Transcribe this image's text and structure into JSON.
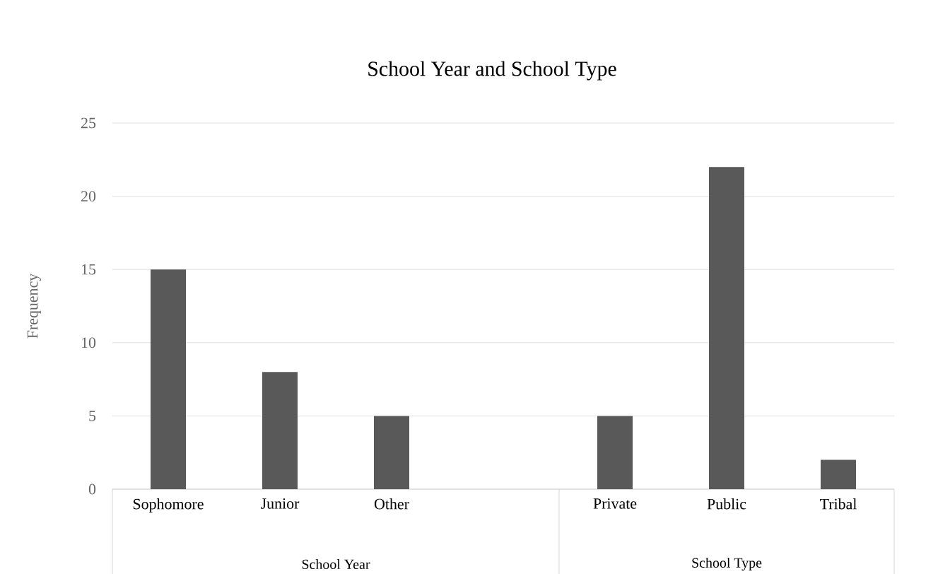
{
  "chart_data": {
    "type": "bar",
    "title": "School Year and School Type",
    "ylabel": "Frequency",
    "categories": [
      "Sophomore",
      "Junior",
      "Other",
      null,
      "Private",
      "Public",
      "Tribal"
    ],
    "values": [
      15,
      8,
      5,
      null,
      5,
      22,
      2
    ],
    "color": "#595959",
    "ylim": [
      0,
      25
    ],
    "yticks": [
      0,
      5,
      10,
      15,
      20,
      25
    ],
    "grid": "y",
    "annotations": [
      "School Year",
      "School Type"
    ]
  }
}
